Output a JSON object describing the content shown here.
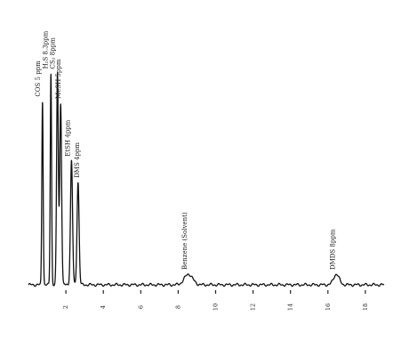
{
  "chart_data": {
    "type": "line",
    "title": "",
    "xlabel": "",
    "ylabel": "",
    "grid": false,
    "legend": "none",
    "x_range": [
      0,
      19
    ],
    "x_ticks": [
      2,
      4,
      6,
      8,
      10,
      12,
      14,
      16,
      18
    ],
    "x_tick_labels": [
      "2",
      "4",
      "6",
      "8",
      "10",
      "12",
      "14",
      "16",
      "18"
    ],
    "y_range": [
      0,
      1
    ],
    "peaks": [
      {
        "label": "COS 5 ppm",
        "retention": 0.75,
        "height": 0.86,
        "width": 0.035
      },
      {
        "label": "H₂S 8.3ppm",
        "retention": 1.2,
        "height": 0.99,
        "width": 0.035
      },
      {
        "label": "CS₂ 8ppm",
        "retention": 1.55,
        "height": 0.99,
        "width": 0.045
      },
      {
        "label": "MeSH 5ppm",
        "retention": 1.72,
        "height": 0.85,
        "width": 0.05
      },
      {
        "label": "EtSH 4ppm",
        "retention": 2.3,
        "height": 0.58,
        "width": 0.055
      },
      {
        "label": "DMS 4ppm",
        "retention": 2.65,
        "height": 0.48,
        "width": 0.055
      },
      {
        "label": "Benzene (Solvent)",
        "retention": 8.55,
        "height": 0.05,
        "width": 0.22
      },
      {
        "label": "DMDS 8ppm",
        "retention": 16.45,
        "height": 0.05,
        "width": 0.15
      }
    ],
    "stroke_color": "#111111"
  }
}
